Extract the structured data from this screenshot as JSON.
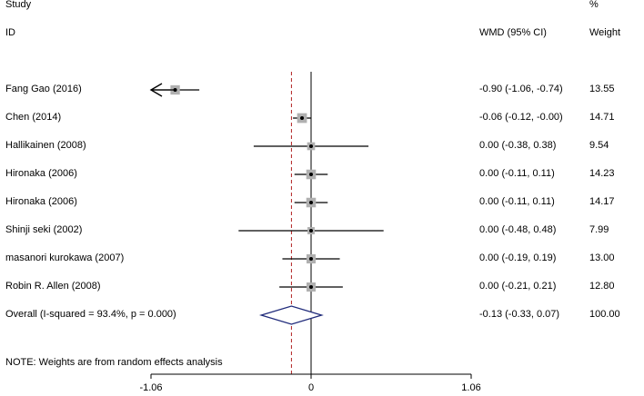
{
  "header": {
    "study_label": "Study",
    "pct_label": "%",
    "id_label": "ID",
    "wmd_label": "WMD (95% CI)",
    "weight_label": "Weight"
  },
  "note": "NOTE: Weights are from random effects analysis",
  "colors": {
    "line": "#000000",
    "box": "#b0b0b0",
    "diamond": "#1f2a7a",
    "overall_line": "#b22222"
  },
  "chart_data": {
    "type": "forest",
    "xlim": [
      -1.06,
      1.06
    ],
    "xticks": [
      -1.06,
      0,
      1.06
    ],
    "xtick_labels": [
      "-1.06",
      "0",
      "1.06"
    ],
    "null_value": 0,
    "studies": [
      {
        "label": "Fang Gao (2016)",
        "est": -0.9,
        "lo": -1.06,
        "hi": -0.74,
        "ci_text": "-0.90 (-1.06, -0.74)",
        "weight": "13.55",
        "arrow_left": true
      },
      {
        "label": "Chen (2014)",
        "est": -0.06,
        "lo": -0.12,
        "hi": -0.0,
        "ci_text": "-0.06 (-0.12, -0.00)",
        "weight": "14.71",
        "arrow_left": false
      },
      {
        "label": "Hallikainen (2008)",
        "est": 0.0,
        "lo": -0.38,
        "hi": 0.38,
        "ci_text": "0.00 (-0.38, 0.38)",
        "weight": "9.54",
        "arrow_left": false
      },
      {
        "label": "Hironaka (2006)",
        "est": 0.0,
        "lo": -0.11,
        "hi": 0.11,
        "ci_text": "0.00 (-0.11, 0.11)",
        "weight": "14.23",
        "arrow_left": false
      },
      {
        "label": "Hironaka (2006)",
        "est": 0.0,
        "lo": -0.11,
        "hi": 0.11,
        "ci_text": "0.00 (-0.11, 0.11)",
        "weight": "14.17",
        "arrow_left": false
      },
      {
        "label": "Shinji seki (2002)",
        "est": 0.0,
        "lo": -0.48,
        "hi": 0.48,
        "ci_text": "0.00 (-0.48, 0.48)",
        "weight": "7.99",
        "arrow_left": false
      },
      {
        "label": "masanori kurokawa (2007)",
        "est": 0.0,
        "lo": -0.19,
        "hi": 0.19,
        "ci_text": "0.00 (-0.19, 0.19)",
        "weight": "13.00",
        "arrow_left": false
      },
      {
        "label": "Robin R. Allen (2008)",
        "est": 0.0,
        "lo": -0.21,
        "hi": 0.21,
        "ci_text": "0.00 (-0.21, 0.21)",
        "weight": "12.80",
        "arrow_left": false
      }
    ],
    "overall": {
      "label": "Overall  (I-squared = 93.4%, p = 0.000)",
      "est": -0.13,
      "lo": -0.33,
      "hi": 0.07,
      "ci_text": "-0.13 (-0.33, 0.07)",
      "weight": "100.00"
    }
  }
}
